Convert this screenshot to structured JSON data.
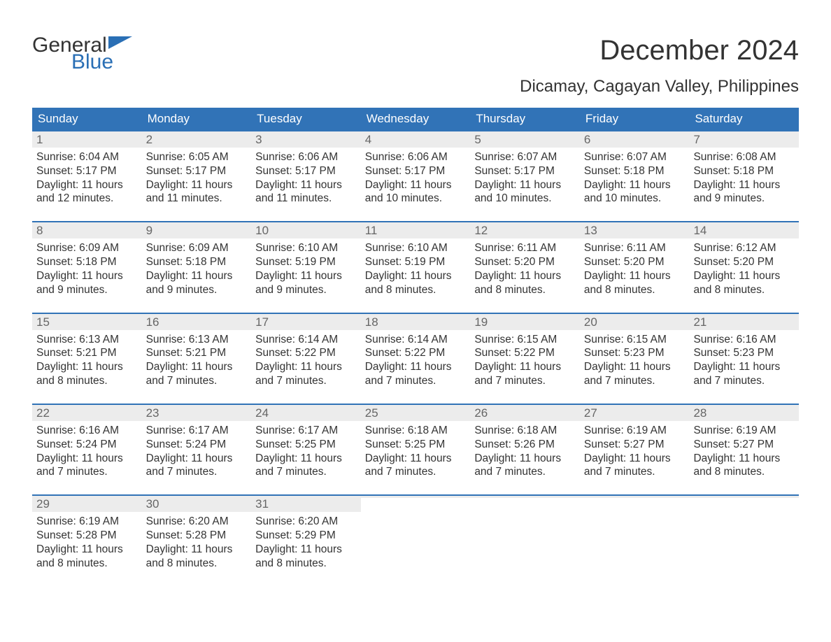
{
  "logo": {
    "text_top": "General",
    "text_bottom": "Blue"
  },
  "title": "December 2024",
  "subtitle": "Dicamay, Cagayan Valley, Philippines",
  "colors": {
    "header_bg": "#3173b7",
    "header_text": "#ffffff",
    "number_bg": "#ececec",
    "number_text": "#666666",
    "body_text": "#333333",
    "row_border": "#3173b7",
    "logo_blue": "#2a6fb5",
    "page_bg": "#ffffff"
  },
  "typography": {
    "title_fontsize": 40,
    "subtitle_fontsize": 24,
    "header_fontsize": 17,
    "daynum_fontsize": 17,
    "body_fontsize": 15.5,
    "font_family": "Arial"
  },
  "day_headers": [
    "Sunday",
    "Monday",
    "Tuesday",
    "Wednesday",
    "Thursday",
    "Friday",
    "Saturday"
  ],
  "weeks": [
    [
      {
        "num": "1",
        "sunrise": "Sunrise: 6:04 AM",
        "sunset": "Sunset: 5:17 PM",
        "daylight": "Daylight: 11 hours and 12 minutes."
      },
      {
        "num": "2",
        "sunrise": "Sunrise: 6:05 AM",
        "sunset": "Sunset: 5:17 PM",
        "daylight": "Daylight: 11 hours and 11 minutes."
      },
      {
        "num": "3",
        "sunrise": "Sunrise: 6:06 AM",
        "sunset": "Sunset: 5:17 PM",
        "daylight": "Daylight: 11 hours and 11 minutes."
      },
      {
        "num": "4",
        "sunrise": "Sunrise: 6:06 AM",
        "sunset": "Sunset: 5:17 PM",
        "daylight": "Daylight: 11 hours and 10 minutes."
      },
      {
        "num": "5",
        "sunrise": "Sunrise: 6:07 AM",
        "sunset": "Sunset: 5:17 PM",
        "daylight": "Daylight: 11 hours and 10 minutes."
      },
      {
        "num": "6",
        "sunrise": "Sunrise: 6:07 AM",
        "sunset": "Sunset: 5:18 PM",
        "daylight": "Daylight: 11 hours and 10 minutes."
      },
      {
        "num": "7",
        "sunrise": "Sunrise: 6:08 AM",
        "sunset": "Sunset: 5:18 PM",
        "daylight": "Daylight: 11 hours and 9 minutes."
      }
    ],
    [
      {
        "num": "8",
        "sunrise": "Sunrise: 6:09 AM",
        "sunset": "Sunset: 5:18 PM",
        "daylight": "Daylight: 11 hours and 9 minutes."
      },
      {
        "num": "9",
        "sunrise": "Sunrise: 6:09 AM",
        "sunset": "Sunset: 5:18 PM",
        "daylight": "Daylight: 11 hours and 9 minutes."
      },
      {
        "num": "10",
        "sunrise": "Sunrise: 6:10 AM",
        "sunset": "Sunset: 5:19 PM",
        "daylight": "Daylight: 11 hours and 9 minutes."
      },
      {
        "num": "11",
        "sunrise": "Sunrise: 6:10 AM",
        "sunset": "Sunset: 5:19 PM",
        "daylight": "Daylight: 11 hours and 8 minutes."
      },
      {
        "num": "12",
        "sunrise": "Sunrise: 6:11 AM",
        "sunset": "Sunset: 5:20 PM",
        "daylight": "Daylight: 11 hours and 8 minutes."
      },
      {
        "num": "13",
        "sunrise": "Sunrise: 6:11 AM",
        "sunset": "Sunset: 5:20 PM",
        "daylight": "Daylight: 11 hours and 8 minutes."
      },
      {
        "num": "14",
        "sunrise": "Sunrise: 6:12 AM",
        "sunset": "Sunset: 5:20 PM",
        "daylight": "Daylight: 11 hours and 8 minutes."
      }
    ],
    [
      {
        "num": "15",
        "sunrise": "Sunrise: 6:13 AM",
        "sunset": "Sunset: 5:21 PM",
        "daylight": "Daylight: 11 hours and 8 minutes."
      },
      {
        "num": "16",
        "sunrise": "Sunrise: 6:13 AM",
        "sunset": "Sunset: 5:21 PM",
        "daylight": "Daylight: 11 hours and 7 minutes."
      },
      {
        "num": "17",
        "sunrise": "Sunrise: 6:14 AM",
        "sunset": "Sunset: 5:22 PM",
        "daylight": "Daylight: 11 hours and 7 minutes."
      },
      {
        "num": "18",
        "sunrise": "Sunrise: 6:14 AM",
        "sunset": "Sunset: 5:22 PM",
        "daylight": "Daylight: 11 hours and 7 minutes."
      },
      {
        "num": "19",
        "sunrise": "Sunrise: 6:15 AM",
        "sunset": "Sunset: 5:22 PM",
        "daylight": "Daylight: 11 hours and 7 minutes."
      },
      {
        "num": "20",
        "sunrise": "Sunrise: 6:15 AM",
        "sunset": "Sunset: 5:23 PM",
        "daylight": "Daylight: 11 hours and 7 minutes."
      },
      {
        "num": "21",
        "sunrise": "Sunrise: 6:16 AM",
        "sunset": "Sunset: 5:23 PM",
        "daylight": "Daylight: 11 hours and 7 minutes."
      }
    ],
    [
      {
        "num": "22",
        "sunrise": "Sunrise: 6:16 AM",
        "sunset": "Sunset: 5:24 PM",
        "daylight": "Daylight: 11 hours and 7 minutes."
      },
      {
        "num": "23",
        "sunrise": "Sunrise: 6:17 AM",
        "sunset": "Sunset: 5:24 PM",
        "daylight": "Daylight: 11 hours and 7 minutes."
      },
      {
        "num": "24",
        "sunrise": "Sunrise: 6:17 AM",
        "sunset": "Sunset: 5:25 PM",
        "daylight": "Daylight: 11 hours and 7 minutes."
      },
      {
        "num": "25",
        "sunrise": "Sunrise: 6:18 AM",
        "sunset": "Sunset: 5:25 PM",
        "daylight": "Daylight: 11 hours and 7 minutes."
      },
      {
        "num": "26",
        "sunrise": "Sunrise: 6:18 AM",
        "sunset": "Sunset: 5:26 PM",
        "daylight": "Daylight: 11 hours and 7 minutes."
      },
      {
        "num": "27",
        "sunrise": "Sunrise: 6:19 AM",
        "sunset": "Sunset: 5:27 PM",
        "daylight": "Daylight: 11 hours and 7 minutes."
      },
      {
        "num": "28",
        "sunrise": "Sunrise: 6:19 AM",
        "sunset": "Sunset: 5:27 PM",
        "daylight": "Daylight: 11 hours and 8 minutes."
      }
    ],
    [
      {
        "num": "29",
        "sunrise": "Sunrise: 6:19 AM",
        "sunset": "Sunset: 5:28 PM",
        "daylight": "Daylight: 11 hours and 8 minutes."
      },
      {
        "num": "30",
        "sunrise": "Sunrise: 6:20 AM",
        "sunset": "Sunset: 5:28 PM",
        "daylight": "Daylight: 11 hours and 8 minutes."
      },
      {
        "num": "31",
        "sunrise": "Sunrise: 6:20 AM",
        "sunset": "Sunset: 5:29 PM",
        "daylight": "Daylight: 11 hours and 8 minutes."
      },
      {
        "empty": true
      },
      {
        "empty": true
      },
      {
        "empty": true
      },
      {
        "empty": true
      }
    ]
  ]
}
